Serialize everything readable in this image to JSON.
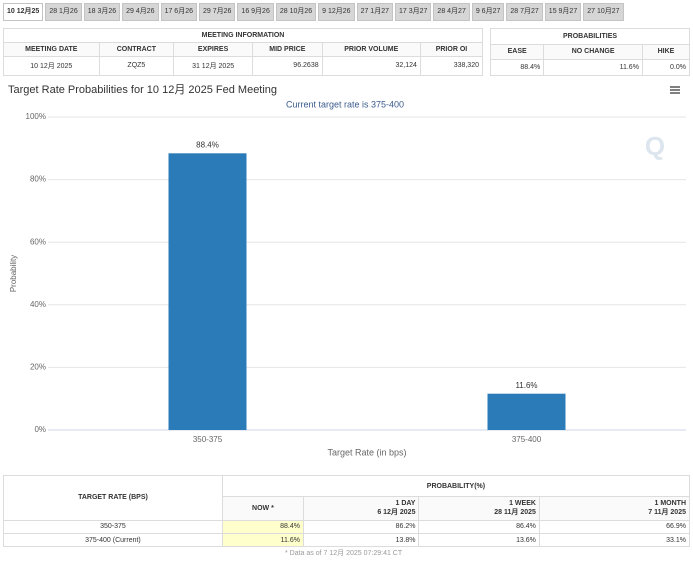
{
  "tabs": [
    "10 12月25",
    "28 1月26",
    "18 3月26",
    "29 4月26",
    "17 6月26",
    "29 7月26",
    "16 9月26",
    "28 10月26",
    "9 12月26",
    "27 1月27",
    "17 3月27",
    "28 4月27",
    "9 6月27",
    "28 7月27",
    "15 9月27",
    "27 10月27"
  ],
  "meeting_info": {
    "title": "MEETING INFORMATION",
    "headers": [
      "MEETING DATE",
      "CONTRACT",
      "EXPIRES",
      "MID PRICE",
      "PRIOR VOLUME",
      "PRIOR OI"
    ],
    "values": [
      "10 12月 2025",
      "ZQZ5",
      "31 12月 2025",
      "96.2638",
      "32,124",
      "338,320"
    ]
  },
  "probabilities": {
    "title": "PROBABILITIES",
    "headers": [
      "EASE",
      "NO CHANGE",
      "HIKE"
    ],
    "values": [
      "88.4%",
      "11.6%",
      "0.0%"
    ]
  },
  "chart_data": {
    "type": "bar",
    "title": "Target Rate Probabilities for 10 12月 2025 Fed Meeting",
    "subtitle": "Current target rate is 375-400",
    "x_label": "Target Rate (in bps)",
    "y_label": "Probability",
    "categories": [
      "350-375",
      "375-400"
    ],
    "values": [
      88.4,
      11.6
    ],
    "value_labels": [
      "88.4%",
      "11.6%"
    ],
    "color": "#2b7bb9",
    "ylim": [
      0,
      100
    ],
    "yticks": [
      {
        "value": 0,
        "label": "0%"
      },
      {
        "value": 20,
        "label": "20%"
      },
      {
        "value": 40,
        "label": "40%"
      },
      {
        "value": 60,
        "label": "60%"
      },
      {
        "value": 80,
        "label": "80%"
      },
      {
        "value": 100,
        "label": "100%"
      }
    ],
    "grid": true
  },
  "probability_table": {
    "row_header": "TARGET RATE (BPS)",
    "group_header": "PROBABILITY(%)",
    "columns": [
      {
        "label": "NOW *"
      },
      {
        "label": "1 DAY",
        "date": "6 12月 2025"
      },
      {
        "label": "1 WEEK",
        "date": "28 11月 2025"
      },
      {
        "label": "1 MONTH",
        "date": "7 11月 2025"
      }
    ],
    "rows": [
      [
        "350-375",
        "88.4%",
        "86.2%",
        "86.4%",
        "66.9%"
      ],
      [
        "375-400 (Current)",
        "11.6%",
        "13.8%",
        "13.6%",
        "33.1%"
      ]
    ],
    "footnote": "* Data as of 7 12月 2025 07:29:41 CT"
  }
}
